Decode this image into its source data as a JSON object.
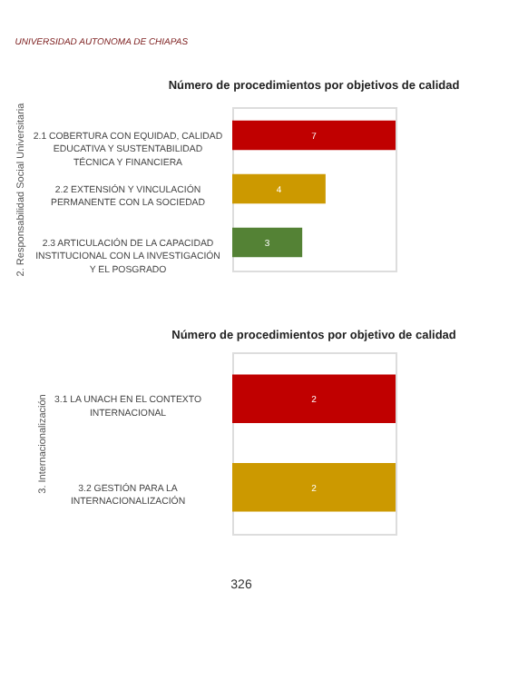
{
  "chart_data": [
    {
      "type": "bar",
      "orientation": "horizontal",
      "title": "Número de procedimientos por objetivos de calidad",
      "ylabel": "2. Responsabilidad Social Universitaria",
      "categories": [
        "2.1 COBERTURA CON EQUIDAD, CALIDAD EDUCATIVA Y SUSTENTABILIDAD TÉCNICA Y FINANCIERA",
        "2.2 EXTENSIÓN Y VINCULACIÓN PERMANENTE CON LA SOCIEDAD",
        "2.3 ARTICULACIÓN DE LA CAPACIDAD INSTITUCIONAL CON LA INVESTIGACIÓN Y EL POSGRADO"
      ],
      "values": [
        7,
        4,
        3
      ],
      "colors": [
        "#c00000",
        "#cc9900",
        "#548235"
      ],
      "data_labels": true,
      "tick_labels": "y",
      "grid": false,
      "annotations": [
        "UNIVERSIDAD AUTONOMA DE CHIAPAS"
      ]
    },
    {
      "type": "bar",
      "orientation": "horizontal",
      "title": "Número de procedimientos por objetivo de calidad",
      "ylabel": "3. Internacionalización",
      "categories": [
        "3.1 LA UNACH EN EL CONTEXTO INTERNACIONAL",
        "3.2 GESTIÓN PARA LA INTERNACIONALIZACIÓN"
      ],
      "values": [
        2,
        2
      ],
      "colors": [
        "#c00000",
        "#cc9900"
      ],
      "data_labels": true,
      "tick_labels": "y",
      "grid": false,
      "annotations": [
        "326"
      ]
    }
  ]
}
